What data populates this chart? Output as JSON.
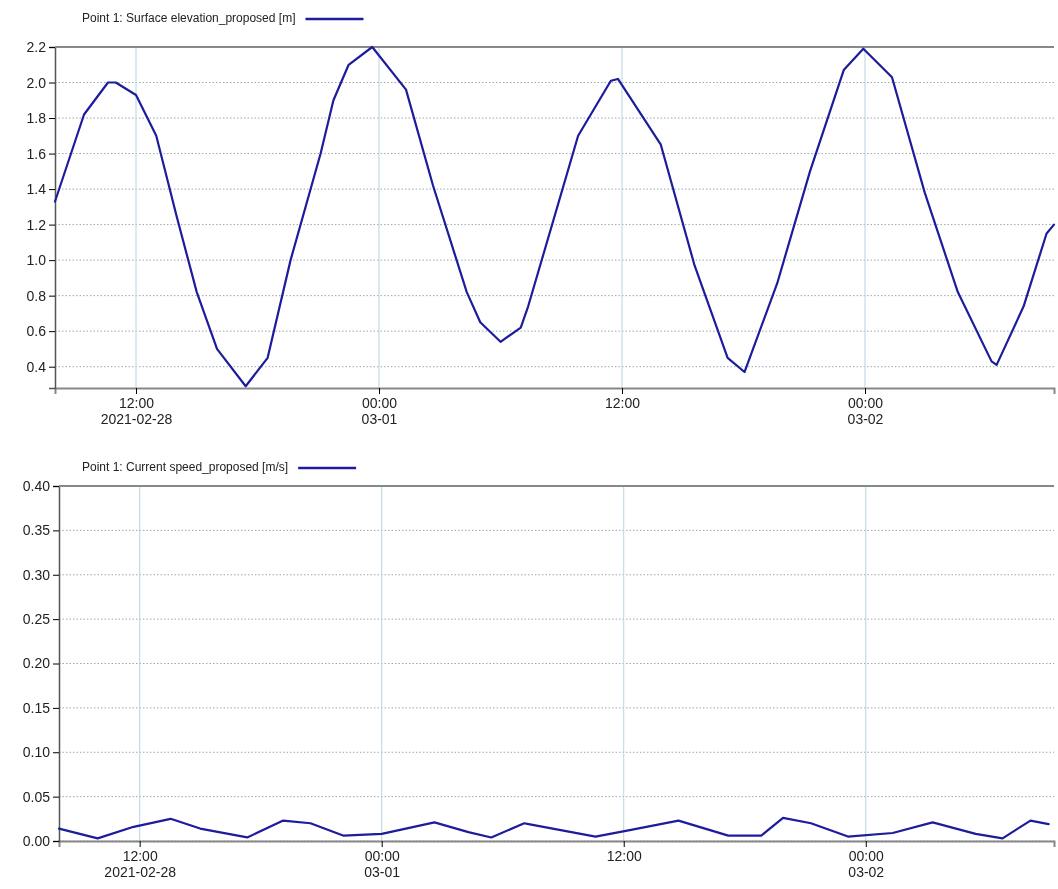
{
  "chart_data": [
    {
      "type": "line",
      "legend": "top left",
      "grid": true,
      "line_style": "solid",
      "xlim": [
        "2021-02-28T08:00",
        "2021-03-02T09:20"
      ],
      "ylim": [
        0.28,
        2.2
      ],
      "xticks": [
        {
          "value": "2021-02-28T12:00",
          "label": "12:00\n2021-02-28"
        },
        {
          "value": "2021-03-01T00:00",
          "label": "00:00\n03-01"
        },
        {
          "value": "2021-03-01T12:00",
          "label": "12:00"
        },
        {
          "value": "2021-03-02T00:00",
          "label": "00:00\n03-02"
        }
      ],
      "yticks": [
        {
          "value": 0.4,
          "label": "0.4"
        },
        {
          "value": 0.6,
          "label": "0.6"
        },
        {
          "value": 0.8,
          "label": "0.8"
        },
        {
          "value": 1.0,
          "label": "1.0"
        },
        {
          "value": 1.2,
          "label": "1.2"
        },
        {
          "value": 1.4,
          "label": "1.4"
        },
        {
          "value": 1.6,
          "label": "1.6"
        },
        {
          "value": 1.8,
          "label": "1.8"
        },
        {
          "value": 2.0,
          "label": "2.0"
        },
        {
          "value": 2.2,
          "label": "2.2"
        }
      ],
      "series": [
        {
          "name": "Point 1: Surface elevation_proposed [m]",
          "color": "#1c1c9c",
          "x": [
            "2021-02-28T08:00",
            "2021-02-28T09:26",
            "2021-02-28T10:37",
            "2021-02-28T11:00",
            "2021-02-28T12:00",
            "2021-02-28T13:00",
            "2021-02-28T14:00",
            "2021-02-28T15:00",
            "2021-02-28T16:00",
            "2021-02-28T17:25",
            "2021-02-28T18:30",
            "2021-02-28T19:38",
            "2021-02-28T21:07",
            "2021-02-28T21:45",
            "2021-02-28T22:30",
            "2021-02-28T23:40",
            "2021-03-01T01:20",
            "2021-03-01T02:40",
            "2021-03-01T04:20",
            "2021-03-01T05:00",
            "2021-03-01T06:00",
            "2021-03-01T07:00",
            "2021-03-01T07:22",
            "2021-03-01T09:50",
            "2021-03-01T11:27",
            "2021-03-01T11:48",
            "2021-03-01T13:55",
            "2021-03-01T15:35",
            "2021-03-01T17:13",
            "2021-03-01T18:03",
            "2021-03-01T19:40",
            "2021-03-01T21:17",
            "2021-03-01T22:57",
            "2021-03-01T23:55",
            "2021-03-02T01:20",
            "2021-03-02T02:57",
            "2021-03-02T04:35",
            "2021-03-02T06:15",
            "2021-03-02T06:30",
            "2021-03-02T07:50",
            "2021-03-02T08:58",
            "2021-03-02T09:20"
          ],
          "values": [
            1.33,
            1.82,
            2.0,
            2.0,
            1.93,
            1.7,
            1.25,
            0.82,
            0.5,
            0.29,
            0.45,
            1.0,
            1.6,
            1.9,
            2.1,
            2.2,
            1.96,
            1.42,
            0.82,
            0.65,
            0.54,
            0.62,
            0.74,
            1.7,
            2.01,
            2.02,
            1.65,
            0.97,
            0.45,
            0.37,
            0.87,
            1.5,
            2.07,
            2.19,
            2.03,
            1.38,
            0.82,
            0.43,
            0.41,
            0.74,
            1.15,
            1.2
          ]
        }
      ]
    },
    {
      "type": "line",
      "legend": "top left",
      "grid": true,
      "line_style": "solid",
      "xlim": [
        "2021-02-28T08:00",
        "2021-03-02T09:20"
      ],
      "ylim": [
        0,
        0.4
      ],
      "xticks": [
        {
          "value": "2021-02-28T12:00",
          "label": "12:00\n2021-02-28"
        },
        {
          "value": "2021-03-01T00:00",
          "label": "00:00\n03-01"
        },
        {
          "value": "2021-03-01T12:00",
          "label": "12:00"
        },
        {
          "value": "2021-03-02T00:00",
          "label": "00:00\n03-02"
        }
      ],
      "yticks": [
        {
          "value": 0,
          "label": "0.00"
        },
        {
          "value": 0.05,
          "label": "0.05"
        },
        {
          "value": 0.1,
          "label": "0.10"
        },
        {
          "value": 0.15,
          "label": "0.15"
        },
        {
          "value": 0.2,
          "label": "0.20"
        },
        {
          "value": 0.25,
          "label": "0.25"
        },
        {
          "value": 0.3,
          "label": "0.30"
        },
        {
          "value": 0.35,
          "label": "0.35"
        },
        {
          "value": 0.4,
          "label": "0.40"
        }
      ],
      "series": [
        {
          "name": "Point 1: Current speed_proposed [m/s]",
          "color": "#1c1c9c",
          "x": [
            "2021-02-28T08:00",
            "2021-02-28T09:55",
            "2021-02-28T11:42",
            "2021-02-28T13:32",
            "2021-02-28T15:00",
            "2021-02-28T17:20",
            "2021-02-28T19:07",
            "2021-02-28T20:28",
            "2021-02-28T22:07",
            "2021-03-01T00:00",
            "2021-03-01T02:37",
            "2021-03-01T04:18",
            "2021-03-01T05:26",
            "2021-03-01T07:04",
            "2021-03-01T07:17",
            "2021-03-01T10:36",
            "2021-03-01T12:14",
            "2021-03-01T14:43",
            "2021-03-01T17:11",
            "2021-03-01T18:49",
            "2021-03-01T19:54",
            "2021-03-01T21:17",
            "2021-03-01T23:07",
            "2021-03-02T01:20",
            "2021-03-02T03:19",
            "2021-03-02T05:27",
            "2021-03-02T06:47",
            "2021-03-02T08:10",
            "2021-03-02T09:04"
          ],
          "values": [
            0.014,
            0.003,
            0.016,
            0.025,
            0.014,
            0.004,
            0.023,
            0.02,
            0.006,
            0.008,
            0.021,
            0.01,
            0.004,
            0.02,
            0.019,
            0.005,
            0.012,
            0.023,
            0.006,
            0.006,
            0.026,
            0.02,
            0.005,
            0.009,
            0.021,
            0.008,
            0.003,
            0.023,
            0.019
          ]
        }
      ]
    }
  ]
}
